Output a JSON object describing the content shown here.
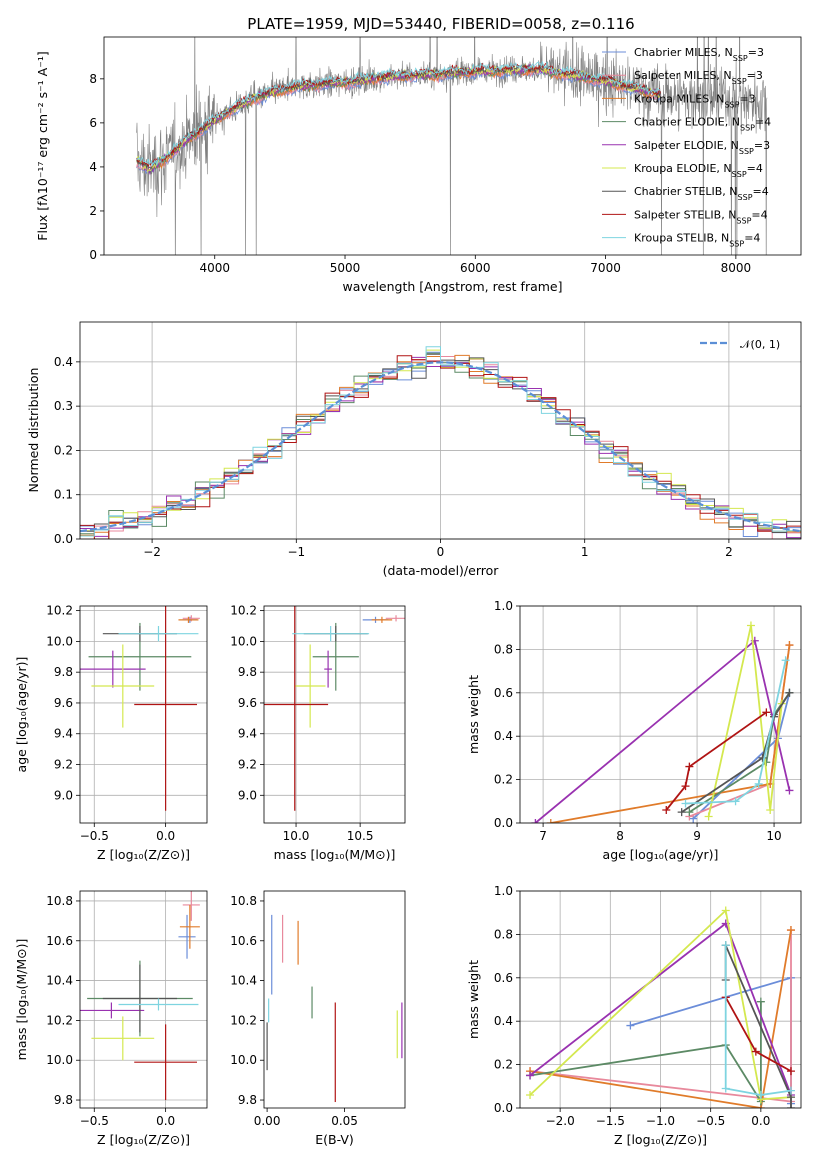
{
  "title": "PLATE=1959, MJD=53440, FIBERID=0058, z=0.116",
  "colors": {
    "Chabrier MILES": "#6b8dd9",
    "Salpeter MILES": "#e8899c",
    "Kroupa MILES": "#e07b2a",
    "Chabrier ELODIE": "#5c8a65",
    "Salpeter ELODIE": "#9932b0",
    "Kroupa ELODIE": "#d4e84f",
    "Chabrier STELIB": "#555555",
    "Salpeter STELIB": "#b01414",
    "Kroupa STELIB": "#7ed4e0",
    "data": "#808080",
    "normal": "#5b8fd6"
  },
  "chart_data": [
    {
      "type": "line",
      "name": "spectrum",
      "xlabel": "wavelength [Angstrom, rest frame]",
      "ylabel": "Flux [fλ10⁻¹⁷ erg cm⁻² s⁻¹ A⁻¹]",
      "xlim": [
        3150,
        8500
      ],
      "ylim": [
        0,
        9.9
      ],
      "xticks": [
        4000,
        5000,
        6000,
        7000,
        8000
      ],
      "yticks": [
        0,
        2,
        4,
        6,
        8
      ],
      "grid": false,
      "legend": [
        "Chabrier MILES, N_SSP=3",
        "Salpeter MILES, N_SSP=3",
        "Kroupa MILES, N_SSP=3",
        "Chabrier ELODIE, N_SSP=4",
        "Salpeter ELODIE, N_SSP=3",
        "Kroupa ELODIE, N_SSP=4",
        "Chabrier STELIB, N_SSP=4",
        "Salpeter STELIB, N_SSP=4",
        "Kroupa STELIB, N_SSP=4"
      ],
      "legend_placement": "upper right",
      "continuum": {
        "x": [
          3400,
          3500,
          3650,
          3800,
          3950,
          4100,
          4300,
          4500,
          4700,
          4900,
          5100,
          5300,
          5500,
          5700,
          5900,
          6100,
          6300,
          6500,
          6600,
          6800,
          7000,
          7200,
          7400,
          7600,
          7800,
          8000,
          8200,
          8240
        ],
        "y": [
          4.3,
          3.9,
          4.5,
          5.3,
          5.9,
          6.5,
          7.1,
          7.5,
          7.7,
          7.8,
          7.9,
          8.1,
          8.15,
          8.2,
          8.3,
          8.35,
          8.4,
          8.45,
          8.3,
          8.1,
          7.9,
          7.6,
          7.3,
          7.2,
          7.15,
          7.1,
          7.0,
          6.8
        ]
      },
      "models_end": 7420,
      "data_end": 8240
    },
    {
      "type": "histogram",
      "name": "residuals",
      "xlabel": "(data-model)/error",
      "ylabel": "Normed distribution",
      "xlim": [
        -2.5,
        2.5
      ],
      "ylim": [
        0,
        0.49
      ],
      "xticks": [
        -2,
        -1,
        0,
        1,
        2
      ],
      "yticks": [
        0.0,
        0.1,
        0.2,
        0.3,
        0.4
      ],
      "grid": true,
      "legend": [
        "𝒩(0, 1)"
      ],
      "legend_placement": "upper right",
      "bin_width": 0.1
    },
    {
      "type": "scatter",
      "name": "age-vs-Z",
      "xlabel": "Z [log₁₀(Z/Z⊙)]",
      "ylabel": "age  [log₁₀(age/yr)]",
      "xlim": [
        -0.6,
        0.29
      ],
      "ylim": [
        8.82,
        10.23
      ],
      "xticks": [
        -0.5,
        0.0
      ],
      "yticks": [
        9.0,
        9.2,
        9.4,
        9.6,
        9.8,
        10.0,
        10.2
      ],
      "grid": true,
      "points": [
        {
          "model": "Chabrier MILES",
          "x": 0.17,
          "xerr": 0.05,
          "y": 10.14,
          "yerr": 0.02
        },
        {
          "model": "Salpeter MILES",
          "x": 0.18,
          "xerr": 0.06,
          "y": 10.15,
          "yerr": 0.02
        },
        {
          "model": "Kroupa MILES",
          "x": 0.16,
          "xerr": 0.07,
          "y": 10.14,
          "yerr": 0.02
        },
        {
          "model": "Chabrier ELODIE",
          "x": -0.18,
          "xerr": 0.36,
          "y": 9.9,
          "yerr": 0.22
        },
        {
          "model": "Salpeter ELODIE",
          "x": -0.37,
          "xerr": 0.23,
          "y": 9.82,
          "yerr": 0.12
        },
        {
          "model": "Kroupa ELODIE",
          "x": -0.3,
          "xerr": 0.22,
          "y": 9.71,
          "yerr": 0.27
        },
        {
          "model": "Chabrier STELIB",
          "x": -0.18,
          "xerr": 0.26,
          "y": 10.05,
          "yerr": 0.05
        },
        {
          "model": "Salpeter STELIB",
          "x": 0.0,
          "xerr": 0.22,
          "y": 9.59,
          "yerr": 0.69
        },
        {
          "model": "Kroupa STELIB",
          "x": -0.05,
          "xerr": 0.28,
          "y": 10.05,
          "yerr": 0.05
        }
      ]
    },
    {
      "type": "scatter",
      "name": "age-vs-mass",
      "xlabel": "mass [log₁₀(M/M⊙)]",
      "ylabel": "",
      "xlim": [
        9.75,
        10.85
      ],
      "ylim": [
        8.82,
        10.23
      ],
      "xticks": [
        10.0,
        10.5
      ],
      "yticks": [
        9.0,
        9.2,
        9.4,
        9.6,
        9.8,
        10.0,
        10.2
      ],
      "grid": true,
      "points": [
        {
          "model": "Chabrier MILES",
          "x": 10.62,
          "xerr": 0.1,
          "y": 10.14,
          "yerr": 0.02
        },
        {
          "model": "Salpeter MILES",
          "x": 10.78,
          "xerr": 0.08,
          "y": 10.15,
          "yerr": 0.02
        },
        {
          "model": "Kroupa MILES",
          "x": 10.67,
          "xerr": 0.08,
          "y": 10.14,
          "yerr": 0.02
        },
        {
          "model": "Chabrier ELODIE",
          "x": 10.31,
          "xerr": 0.18,
          "y": 9.9,
          "yerr": 0.22
        },
        {
          "model": "Salpeter ELODIE",
          "x": 10.25,
          "xerr": 0.03,
          "y": 9.82,
          "yerr": 0.12
        },
        {
          "model": "Kroupa ELODIE",
          "x": 10.11,
          "xerr": 0.12,
          "y": 9.71,
          "yerr": 0.27
        },
        {
          "model": "Chabrier STELIB",
          "x": 10.31,
          "xerr": 0.25,
          "y": 10.05,
          "yerr": 0.05
        },
        {
          "model": "Salpeter STELIB",
          "x": 9.99,
          "xerr": 0.26,
          "y": 9.59,
          "yerr": 0.69
        },
        {
          "model": "Kroupa STELIB",
          "x": 10.27,
          "xerr": 0.3,
          "y": 10.05,
          "yerr": 0.05
        }
      ]
    },
    {
      "type": "line",
      "name": "mass-weight-vs-age",
      "xlabel": "age  [log₁₀(age/yr)]",
      "ylabel": "mass weight",
      "xlim": [
        6.7,
        10.35
      ],
      "ylim": [
        0,
        1.0
      ],
      "xticks": [
        7,
        8,
        9,
        10
      ],
      "yticks": [
        0.0,
        0.2,
        0.4,
        0.6,
        0.8,
        1.0
      ],
      "grid": true,
      "series": [
        {
          "model": "Chabrier MILES",
          "x": [
            8.95,
            10.05,
            10.2
          ],
          "y": [
            0.02,
            0.39,
            0.6
          ]
        },
        {
          "model": "Salpeter MILES",
          "x": [
            8.9,
            9.95,
            10.2
          ],
          "y": [
            0.03,
            0.18,
            0.82
          ]
        },
        {
          "model": "Kroupa MILES",
          "x": [
            7.1,
            9.95,
            10.2
          ],
          "y": [
            0.0,
            0.18,
            0.82
          ]
        },
        {
          "model": "Chabrier ELODIE",
          "x": [
            8.9,
            9.9,
            10.0,
            10.2
          ],
          "y": [
            0.05,
            0.28,
            0.5,
            0.6
          ]
        },
        {
          "model": "Salpeter ELODIE",
          "x": [
            6.9,
            9.75,
            10.2
          ],
          "y": [
            0.0,
            0.84,
            0.15
          ]
        },
        {
          "model": "Kroupa ELODIE",
          "x": [
            9.15,
            9.7,
            9.95,
            10.1
          ],
          "y": [
            0.03,
            0.91,
            0.06,
            0.55
          ]
        },
        {
          "model": "Chabrier STELIB",
          "x": [
            8.8,
            9.85,
            10.0,
            10.2
          ],
          "y": [
            0.05,
            0.3,
            0.49,
            0.6
          ]
        },
        {
          "model": "Salpeter STELIB",
          "x": [
            8.6,
            8.85,
            8.9,
            9.9
          ],
          "y": [
            0.06,
            0.17,
            0.26,
            0.51
          ]
        },
        {
          "model": "Kroupa STELIB",
          "x": [
            8.85,
            9.5,
            9.8,
            10.15
          ],
          "y": [
            0.09,
            0.1,
            0.18,
            0.75
          ]
        }
      ]
    },
    {
      "type": "scatter",
      "name": "mass-vs-Z",
      "xlabel": "Z [log₁₀(Z/Z⊙)]",
      "ylabel": "mass [log₁₀(M/M⊙)]",
      "xlim": [
        -0.6,
        0.29
      ],
      "ylim": [
        9.76,
        10.85
      ],
      "xticks": [
        -0.5,
        0.0
      ],
      "yticks": [
        9.8,
        10.0,
        10.2,
        10.4,
        10.6,
        10.8
      ],
      "grid": true,
      "points": [
        {
          "model": "Chabrier MILES",
          "x": 0.15,
          "xerr": 0.06,
          "y": 10.62,
          "yerr": 0.11
        },
        {
          "model": "Salpeter MILES",
          "x": 0.18,
          "xerr": 0.06,
          "y": 10.78,
          "yerr": 0.08
        },
        {
          "model": "Kroupa MILES",
          "x": 0.17,
          "xerr": 0.07,
          "y": 10.67,
          "yerr": 0.11
        },
        {
          "model": "Chabrier ELODIE",
          "x": -0.18,
          "xerr": 0.37,
          "y": 10.31,
          "yerr": 0.19
        },
        {
          "model": "Salpeter ELODIE",
          "x": -0.38,
          "xerr": 0.23,
          "y": 10.25,
          "yerr": 0.04
        },
        {
          "model": "Kroupa ELODIE",
          "x": -0.3,
          "xerr": 0.22,
          "y": 10.11,
          "yerr": 0.11
        },
        {
          "model": "Chabrier STELIB",
          "x": -0.18,
          "xerr": 0.26,
          "y": 10.31,
          "yerr": 0.17
        },
        {
          "model": "Salpeter STELIB",
          "x": 0.0,
          "xerr": 0.22,
          "y": 9.99,
          "yerr": 0.19
        },
        {
          "model": "Kroupa STELIB",
          "x": -0.05,
          "xerr": 0.28,
          "y": 10.28,
          "yerr": 0.03
        }
      ]
    },
    {
      "type": "scatter",
      "name": "mass-vs-ebv",
      "xlabel": "E(B-V)",
      "ylabel": "",
      "xlim": [
        -0.002,
        0.089
      ],
      "ylim": [
        9.76,
        10.85
      ],
      "xticks": [
        0.0,
        0.05
      ],
      "yticks": [
        9.8,
        10.0,
        10.2,
        10.4,
        10.6,
        10.8
      ],
      "grid": false,
      "points": [
        {
          "model": "Chabrier MILES",
          "x": 0.003,
          "y": 10.53,
          "yerr": 0.2
        },
        {
          "model": "Salpeter MILES",
          "x": 0.01,
          "y": 10.61,
          "yerr": 0.12
        },
        {
          "model": "Kroupa MILES",
          "x": 0.02,
          "y": 10.59,
          "yerr": 0.11
        },
        {
          "model": "Chabrier ELODIE",
          "x": 0.029,
          "y": 10.29,
          "yerr": 0.08
        },
        {
          "model": "Salpeter ELODIE",
          "x": 0.087,
          "y": 10.15,
          "yerr": 0.14
        },
        {
          "model": "Kroupa ELODIE",
          "x": 0.084,
          "y": 10.13,
          "yerr": 0.12
        },
        {
          "model": "Chabrier STELIB",
          "x": 0.0,
          "y": 10.07,
          "yerr": 0.12
        },
        {
          "model": "Salpeter STELIB",
          "x": 0.044,
          "y": 10.04,
          "yerr": 0.25
        },
        {
          "model": "Kroupa STELIB",
          "x": 0.001,
          "y": 10.25,
          "yerr": 0.06
        }
      ]
    },
    {
      "type": "line",
      "name": "mass-weight-vs-Z",
      "xlabel": "Z [log₁₀(Z/Z⊙)]",
      "ylabel": "mass weight",
      "xlim": [
        -2.4,
        0.4
      ],
      "ylim": [
        0,
        1.0
      ],
      "xticks": [
        -2.0,
        -1.5,
        -1.0,
        -0.5,
        0.0
      ],
      "yticks": [
        0.0,
        0.2,
        0.4,
        0.6,
        0.8,
        1.0
      ],
      "grid": true,
      "series": [
        {
          "model": "Chabrier MILES",
          "x": [
            -1.3,
            0.3,
            0.3
          ],
          "y": [
            0.38,
            0.6,
            0.02
          ]
        },
        {
          "model": "Salpeter MILES",
          "x": [
            -2.3,
            0.3,
            0.3
          ],
          "y": [
            0.17,
            0.03,
            0.82
          ]
        },
        {
          "model": "Kroupa MILES",
          "x": [
            -2.3,
            0.0,
            0.3
          ],
          "y": [
            0.17,
            0.0,
            0.82
          ]
        },
        {
          "model": "Chabrier ELODIE",
          "x": [
            -2.3,
            -0.35,
            0.0,
            0.0
          ],
          "y": [
            0.15,
            0.29,
            0.03,
            0.49
          ]
        },
        {
          "model": "Salpeter ELODIE",
          "x": [
            -2.3,
            -0.35,
            0.3
          ],
          "y": [
            0.15,
            0.85,
            0.06
          ]
        },
        {
          "model": "Kroupa ELODIE",
          "x": [
            -2.3,
            -0.35,
            0.0,
            0.3
          ],
          "y": [
            0.06,
            0.91,
            0.04,
            0.05
          ]
        },
        {
          "model": "Chabrier STELIB",
          "x": [
            -0.35,
            -0.35,
            0.3,
            0.3
          ],
          "y": [
            0.59,
            0.75,
            0.05,
            0.0
          ]
        },
        {
          "model": "Salpeter STELIB",
          "x": [
            -0.35,
            -0.05,
            0.3
          ],
          "y": [
            0.51,
            0.26,
            0.17
          ]
        },
        {
          "model": "Kroupa STELIB",
          "x": [
            -0.35,
            -0.35,
            0.0,
            0.3
          ],
          "y": [
            0.75,
            0.09,
            0.06,
            0.08
          ]
        }
      ]
    }
  ]
}
